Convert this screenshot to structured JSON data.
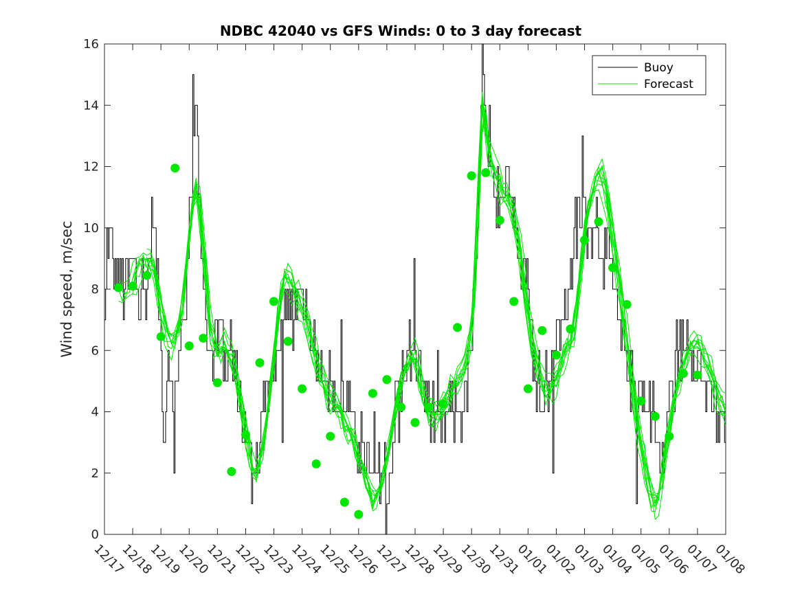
{
  "chart_data": {
    "type": "line",
    "title": "NDBC 42040 vs GFS Winds: 0 to 3 day forecast",
    "ylabel": "Wind speed, m/sec",
    "xlabel": "",
    "ylim": [
      0,
      16
    ],
    "yticks": [
      0,
      2,
      4,
      6,
      8,
      10,
      12,
      14,
      16
    ],
    "xlim": [
      0,
      22
    ],
    "xtick_labels": [
      "12/17",
      "12/18",
      "12/19",
      "12/20",
      "12/21",
      "12/22",
      "12/23",
      "12/24",
      "12/25",
      "12/26",
      "12/27",
      "12/28",
      "12/29",
      "12/30",
      "12/31",
      "01/01",
      "01/02",
      "01/03",
      "01/04",
      "01/05",
      "01/06",
      "01/07",
      "01/08"
    ],
    "legend": {
      "position": "top-right",
      "entries": [
        "Buoy",
        "Forecast"
      ]
    },
    "colors": {
      "buoy": "#000000",
      "forecast": "#00e600",
      "axis": "#262626"
    },
    "buoy_keypoints": [
      [
        0.0,
        7.0
      ],
      [
        0.1,
        10.0
      ],
      [
        0.3,
        9.0
      ],
      [
        0.5,
        8.5
      ],
      [
        0.7,
        8.0
      ],
      [
        0.9,
        8.5
      ],
      [
        1.0,
        9.0
      ],
      [
        1.2,
        8.5
      ],
      [
        1.4,
        8.0
      ],
      [
        1.6,
        9.0
      ],
      [
        1.7,
        11.0
      ],
      [
        1.85,
        8.0
      ],
      [
        2.0,
        6.0
      ],
      [
        2.1,
        3.0
      ],
      [
        2.25,
        6.0
      ],
      [
        2.4,
        4.0
      ],
      [
        2.6,
        5.0
      ],
      [
        2.75,
        7.0
      ],
      [
        2.9,
        8.0
      ],
      [
        3.05,
        11.0
      ],
      [
        3.2,
        15.0
      ],
      [
        3.35,
        11.0
      ],
      [
        3.5,
        8.0
      ],
      [
        3.7,
        6.0
      ],
      [
        3.9,
        6.5
      ],
      [
        4.1,
        6.5
      ],
      [
        4.3,
        6.0
      ],
      [
        4.5,
        6.0
      ],
      [
        4.7,
        5.0
      ],
      [
        4.85,
        4.0
      ],
      [
        5.0,
        3.0
      ],
      [
        5.2,
        2.0
      ],
      [
        5.35,
        2.5
      ],
      [
        5.5,
        3.0
      ],
      [
        5.65,
        4.5
      ],
      [
        5.85,
        5.0
      ],
      [
        6.05,
        5.5
      ],
      [
        6.2,
        6.5
      ],
      [
        6.4,
        7.0
      ],
      [
        6.6,
        7.0
      ],
      [
        6.8,
        7.5
      ],
      [
        7.0,
        8.0
      ],
      [
        7.2,
        7.0
      ],
      [
        7.4,
        6.5
      ],
      [
        7.6,
        6.0
      ],
      [
        7.8,
        5.5
      ],
      [
        8.0,
        5.0
      ],
      [
        8.2,
        4.5
      ],
      [
        8.4,
        4.5
      ],
      [
        8.6,
        4.0
      ],
      [
        8.8,
        3.5
      ],
      [
        9.0,
        3.0
      ],
      [
        9.2,
        2.5
      ],
      [
        9.4,
        2.0
      ],
      [
        9.6,
        1.5
      ],
      [
        9.75,
        2.0
      ],
      [
        9.9,
        2.0
      ],
      [
        10.05,
        1.5
      ],
      [
        10.2,
        3.0
      ],
      [
        10.35,
        4.5
      ],
      [
        10.55,
        5.0
      ],
      [
        10.75,
        6.0
      ],
      [
        10.95,
        6.0
      ],
      [
        11.15,
        5.5
      ],
      [
        11.35,
        4.5
      ],
      [
        11.55,
        4.0
      ],
      [
        11.75,
        3.5
      ],
      [
        11.95,
        3.5
      ],
      [
        12.15,
        4.0
      ],
      [
        12.35,
        4.0
      ],
      [
        12.55,
        4.0
      ],
      [
        12.75,
        4.5
      ],
      [
        12.95,
        6.0
      ],
      [
        13.1,
        7.5
      ],
      [
        13.25,
        11.0
      ],
      [
        13.35,
        15.5
      ],
      [
        13.5,
        12.5
      ],
      [
        13.65,
        11.5
      ],
      [
        13.8,
        11.0
      ],
      [
        14.0,
        11.0
      ],
      [
        14.2,
        12.0
      ],
      [
        14.4,
        11.0
      ],
      [
        14.6,
        10.0
      ],
      [
        14.8,
        9.0
      ],
      [
        15.0,
        8.0
      ],
      [
        15.15,
        6.0
      ],
      [
        15.3,
        4.0
      ],
      [
        15.45,
        4.5
      ],
      [
        15.6,
        5.0
      ],
      [
        15.8,
        5.5
      ],
      [
        16.0,
        6.0
      ],
      [
        16.2,
        7.0
      ],
      [
        16.4,
        8.0
      ],
      [
        16.6,
        9.5
      ],
      [
        16.8,
        10.5
      ],
      [
        17.0,
        10.5
      ],
      [
        17.2,
        10.0
      ],
      [
        17.4,
        10.5
      ],
      [
        17.6,
        9.5
      ],
      [
        17.8,
        9.0
      ],
      [
        18.0,
        8.0
      ],
      [
        18.2,
        7.0
      ],
      [
        18.4,
        6.0
      ],
      [
        18.6,
        5.0
      ],
      [
        18.8,
        4.5
      ],
      [
        19.0,
        4.5
      ],
      [
        19.2,
        4.0
      ],
      [
        19.4,
        4.5
      ],
      [
        19.55,
        3.0
      ],
      [
        19.7,
        1.5
      ],
      [
        19.85,
        3.0
      ],
      [
        20.05,
        4.5
      ],
      [
        20.25,
        5.5
      ],
      [
        20.45,
        6.0
      ],
      [
        20.65,
        6.5
      ],
      [
        20.85,
        6.0
      ],
      [
        21.05,
        5.5
      ],
      [
        21.25,
        5.0
      ],
      [
        21.45,
        4.5
      ],
      [
        21.65,
        4.0
      ],
      [
        21.85,
        3.5
      ],
      [
        22.0,
        3.5
      ]
    ],
    "forecast_keypoints": [
      [
        0.5,
        8.0
      ],
      [
        0.8,
        7.8
      ],
      [
        1.0,
        8.2
      ],
      [
        1.3,
        8.8
      ],
      [
        1.6,
        9.0
      ],
      [
        1.8,
        8.5
      ],
      [
        2.0,
        7.5
      ],
      [
        2.2,
        6.5
      ],
      [
        2.45,
        6.2
      ],
      [
        2.7,
        7.0
      ],
      [
        2.9,
        8.8
      ],
      [
        3.1,
        10.5
      ],
      [
        3.3,
        11.5
      ],
      [
        3.5,
        9.5
      ],
      [
        3.75,
        6.8
      ],
      [
        4.0,
        5.9
      ],
      [
        4.3,
        6.2
      ],
      [
        4.6,
        5.5
      ],
      [
        4.9,
        4.0
      ],
      [
        5.1,
        2.8
      ],
      [
        5.35,
        1.8
      ],
      [
        5.6,
        2.8
      ],
      [
        5.85,
        4.5
      ],
      [
        6.1,
        6.8
      ],
      [
        6.35,
        8.5
      ],
      [
        6.6,
        8.3
      ],
      [
        6.85,
        7.8
      ],
      [
        7.1,
        7.2
      ],
      [
        7.35,
        6.3
      ],
      [
        7.65,
        5.2
      ],
      [
        7.95,
        4.5
      ],
      [
        8.25,
        4.2
      ],
      [
        8.55,
        3.5
      ],
      [
        8.85,
        3.0
      ],
      [
        9.15,
        2.2
      ],
      [
        9.45,
        1.2
      ],
      [
        9.7,
        1.3
      ],
      [
        9.95,
        2.2
      ],
      [
        10.2,
        3.5
      ],
      [
        10.5,
        5.0
      ],
      [
        10.8,
        5.8
      ],
      [
        11.05,
        5.8
      ],
      [
        11.3,
        4.5
      ],
      [
        11.6,
        3.8
      ],
      [
        11.9,
        4.0
      ],
      [
        12.2,
        4.5
      ],
      [
        12.5,
        5.0
      ],
      [
        12.8,
        5.5
      ],
      [
        13.05,
        7.0
      ],
      [
        13.25,
        11.0
      ],
      [
        13.4,
        14.5
      ],
      [
        13.6,
        12.5
      ],
      [
        13.85,
        11.8
      ],
      [
        14.1,
        11.3
      ],
      [
        14.4,
        10.8
      ],
      [
        14.7,
        9.5
      ],
      [
        14.95,
        7.5
      ],
      [
        15.2,
        6.0
      ],
      [
        15.45,
        5.0
      ],
      [
        15.7,
        4.6
      ],
      [
        16.0,
        5.0
      ],
      [
        16.3,
        6.0
      ],
      [
        16.6,
        6.5
      ],
      [
        16.85,
        8.5
      ],
      [
        17.1,
        10.5
      ],
      [
        17.35,
        11.5
      ],
      [
        17.6,
        11.8
      ],
      [
        17.85,
        10.8
      ],
      [
        18.1,
        9.0
      ],
      [
        18.35,
        7.5
      ],
      [
        18.6,
        5.5
      ],
      [
        18.9,
        3.5
      ],
      [
        19.2,
        2.0
      ],
      [
        19.45,
        1.0
      ],
      [
        19.65,
        1.2
      ],
      [
        19.9,
        2.8
      ],
      [
        20.2,
        4.5
      ],
      [
        20.5,
        5.5
      ],
      [
        20.8,
        6.3
      ],
      [
        21.1,
        6.2
      ],
      [
        21.4,
        5.5
      ],
      [
        21.7,
        4.6
      ],
      [
        22.0,
        4.0
      ]
    ],
    "forecast_dots": [
      [
        0.5,
        8.05
      ],
      [
        1.0,
        8.1
      ],
      [
        1.5,
        8.45
      ],
      [
        2.0,
        6.45
      ],
      [
        2.5,
        11.95
      ],
      [
        3.0,
        6.15
      ],
      [
        3.5,
        6.4
      ],
      [
        4.0,
        4.95
      ],
      [
        4.5,
        2.05
      ],
      [
        5.0,
        3.25
      ],
      [
        5.5,
        5.6
      ],
      [
        6.0,
        7.6
      ],
      [
        6.5,
        6.3
      ],
      [
        7.0,
        4.75
      ],
      [
        7.5,
        2.3
      ],
      [
        8.0,
        3.2
      ],
      [
        8.5,
        1.05
      ],
      [
        9.0,
        0.65
      ],
      [
        9.5,
        4.6
      ],
      [
        10.0,
        5.05
      ],
      [
        10.5,
        4.15
      ],
      [
        11.0,
        3.65
      ],
      [
        11.5,
        4.15
      ],
      [
        12.0,
        4.25
      ],
      [
        12.5,
        6.75
      ],
      [
        13.0,
        11.7
      ],
      [
        13.5,
        11.8
      ],
      [
        14.0,
        10.25
      ],
      [
        14.5,
        7.6
      ],
      [
        15.0,
        4.75
      ],
      [
        15.5,
        6.65
      ],
      [
        16.0,
        5.85
      ],
      [
        16.5,
        6.7
      ],
      [
        17.0,
        9.6
      ],
      [
        17.5,
        10.2
      ],
      [
        18.0,
        8.7
      ],
      [
        18.5,
        7.5
      ],
      [
        19.0,
        4.35
      ],
      [
        19.5,
        3.85
      ],
      [
        20.0,
        3.2
      ],
      [
        20.5,
        5.25
      ],
      [
        21.0,
        5.2
      ]
    ]
  }
}
